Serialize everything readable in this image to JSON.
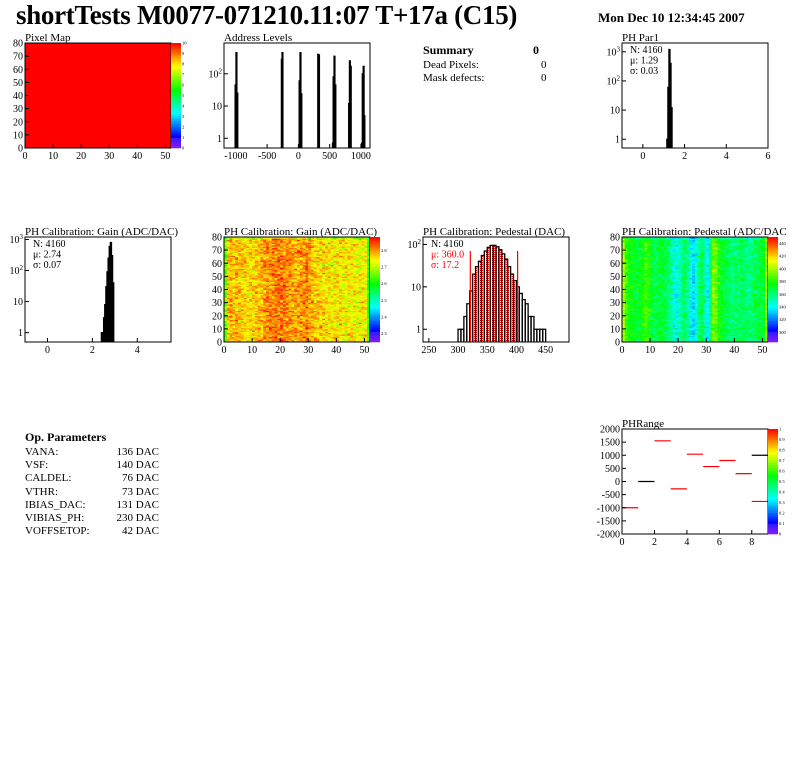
{
  "header": {
    "title": "shortTests M0077-071210.11:07 T+17a (C15)",
    "date": "Mon Dec 10 12:34:45 2007"
  },
  "summary": {
    "title": "Summary",
    "total": "0",
    "rows": [
      {
        "label": "Dead Pixels:",
        "value": "0"
      },
      {
        "label": "Mask defects:",
        "value": "0"
      }
    ]
  },
  "op_parameters": {
    "title": "Op. Parameters",
    "rows": [
      {
        "label": "VANA:",
        "value": "136 DAC"
      },
      {
        "label": "VSF:",
        "value": "140 DAC"
      },
      {
        "label": "CALDEL:",
        "value": "76 DAC"
      },
      {
        "label": "VTHR:",
        "value": "73 DAC"
      },
      {
        "label": "IBIAS_DAC:",
        "value": "131 DAC"
      },
      {
        "label": "VIBIAS_PH:",
        "value": "230 DAC"
      },
      {
        "label": "VOFFSETOP:",
        "value": "42 DAC"
      }
    ]
  },
  "colors": {
    "hist_line": "#000000",
    "fit": "#ff0000",
    "frame": "#000000"
  },
  "chart_data": [
    {
      "id": "pixmap",
      "type": "heatmap",
      "title": "Pixel Map",
      "xlim": [
        0,
        52
      ],
      "ylim": [
        0,
        80
      ],
      "zlim": [
        0,
        10
      ],
      "xticks": [
        0,
        10,
        20,
        30,
        40,
        50
      ],
      "yticks": [
        0,
        10,
        20,
        30,
        40,
        50,
        60,
        70,
        80
      ],
      "zticks": [
        0,
        1,
        2,
        3,
        4,
        5,
        6,
        7,
        8,
        9,
        10
      ],
      "nx": 52,
      "ny": 80,
      "uniform_value": 10
    },
    {
      "id": "addr",
      "type": "bar",
      "title": "Address Levels",
      "log_y": true,
      "xlim": [
        -1190,
        1145
      ],
      "ylim": [
        0.5,
        900
      ],
      "xticks": [
        -1000,
        -500,
        0,
        500,
        1000
      ],
      "yticks": [
        1,
        10,
        100
      ],
      "bin_width": 14,
      "bins": [
        [
          -1012,
          45
        ],
        [
          -998,
          450
        ],
        [
          -984,
          25
        ],
        [
          -1010,
          0.6
        ],
        [
          -272,
          280
        ],
        [
          -262,
          450
        ],
        [
          12,
          60
        ],
        [
          26,
          450
        ],
        [
          40,
          24
        ],
        [
          310,
          400
        ],
        [
          322,
          380
        ],
        [
          556,
          80
        ],
        [
          570,
          350
        ],
        [
          584,
          45
        ],
        [
          545,
          0.7
        ],
        [
          804,
          12
        ],
        [
          816,
          250
        ],
        [
          830,
          170
        ],
        [
          1022,
          100
        ],
        [
          1036,
          170
        ],
        [
          1048,
          5
        ],
        [
          1010,
          0.7
        ]
      ]
    },
    {
      "id": "par1",
      "type": "bar",
      "title": "PH Par1",
      "log_y": true,
      "xlim": [
        -1,
        6
      ],
      "ylim": [
        0.5,
        2000
      ],
      "xticks": [
        0,
        2,
        4,
        6
      ],
      "yticks": [
        1,
        10,
        100,
        1000
      ],
      "bin_width": 0.05,
      "bins": [
        [
          1.15,
          1
        ],
        [
          1.2,
          60
        ],
        [
          1.25,
          1200
        ],
        [
          1.3,
          400
        ],
        [
          1.35,
          12
        ],
        [
          1.4,
          0
        ]
      ],
      "stats": {
        "n": "N: 4160",
        "mean": "μ: 1.29",
        "sigma": "σ: 0.03"
      }
    },
    {
      "id": "gainh",
      "type": "bar",
      "title": "PH Calibration: Gain (ADC/DAC)",
      "log_y": true,
      "xlim": [
        -1,
        5.5
      ],
      "ylim": [
        0.5,
        1200
      ],
      "xticks": [
        0,
        2,
        4
      ],
      "yticks": [
        1,
        10,
        100,
        1000
      ],
      "bin_width": 0.05,
      "bins": [
        [
          2.4,
          1
        ],
        [
          2.45,
          1
        ],
        [
          2.5,
          3
        ],
        [
          2.55,
          8
        ],
        [
          2.6,
          30
        ],
        [
          2.65,
          90
        ],
        [
          2.7,
          250
        ],
        [
          2.75,
          600
        ],
        [
          2.8,
          800
        ],
        [
          2.85,
          300
        ],
        [
          2.9,
          40
        ],
        [
          2.95,
          0
        ]
      ],
      "stats": {
        "n": "N: 4160",
        "mean": "μ: 2.74",
        "sigma": "σ: 0.07"
      }
    },
    {
      "id": "gainm",
      "type": "heatmap",
      "title": "PH Calibration: Gain (ADC/DAC)",
      "xlim": [
        0,
        52
      ],
      "ylim": [
        0,
        80
      ],
      "zlim": [
        2.25,
        2.88
      ],
      "xticks": [
        0,
        10,
        20,
        30,
        40,
        50
      ],
      "yticks": [
        0,
        10,
        20,
        30,
        40,
        50,
        60,
        70,
        80
      ],
      "zticks": [
        2.3,
        2.4,
        2.5,
        2.6,
        2.7,
        2.8
      ],
      "nx": 52,
      "ny": 80,
      "column_means": [
        2.66,
        2.76,
        2.78,
        2.77,
        2.78,
        2.77,
        2.76,
        2.76,
        2.75,
        2.76,
        2.76,
        2.77,
        2.77,
        2.78,
        2.79,
        2.8,
        2.8,
        2.81,
        2.81,
        2.81,
        2.82,
        2.81,
        2.8,
        2.8,
        2.79,
        2.79,
        2.79,
        2.8,
        2.8,
        2.81,
        2.79,
        2.78,
        2.77,
        2.76,
        2.76,
        2.76,
        2.75,
        2.75,
        2.74,
        2.75,
        2.75,
        2.75,
        2.74,
        2.74,
        2.75,
        2.74,
        2.74,
        2.73,
        2.74,
        2.74,
        2.73,
        2.62
      ],
      "spread": 0.05
    },
    {
      "id": "pedh",
      "type": "bar",
      "title": "PH Calibration: Pedestal (DAC)",
      "log_y": true,
      "xlim": [
        240,
        490
      ],
      "ylim": [
        0.5,
        150
      ],
      "xticks": [
        250,
        300,
        350,
        400,
        450
      ],
      "yticks": [
        1,
        10,
        100
      ],
      "bin_width": 5,
      "bins": [
        [
          300,
          1
        ],
        [
          305,
          1
        ],
        [
          310,
          2
        ],
        [
          315,
          4
        ],
        [
          320,
          8
        ],
        [
          325,
          20
        ],
        [
          330,
          30
        ],
        [
          335,
          40
        ],
        [
          340,
          55
        ],
        [
          345,
          70
        ],
        [
          350,
          85
        ],
        [
          355,
          95
        ],
        [
          360,
          95
        ],
        [
          365,
          88
        ],
        [
          370,
          75
        ],
        [
          375,
          60
        ],
        [
          380,
          45
        ],
        [
          385,
          30
        ],
        [
          390,
          20
        ],
        [
          395,
          14
        ],
        [
          400,
          10
        ],
        [
          405,
          7
        ],
        [
          410,
          5
        ],
        [
          415,
          4
        ],
        [
          420,
          2
        ],
        [
          425,
          2
        ],
        [
          430,
          1
        ],
        [
          435,
          1
        ],
        [
          440,
          1
        ],
        [
          445,
          1
        ]
      ],
      "fit_range": [
        321,
        402
      ],
      "stats": {
        "n": "N: 4160",
        "mean": "μ: 360.0",
        "sigma": "σ: 17.2"
      }
    },
    {
      "id": "pedm",
      "type": "heatmap",
      "title": "PH Calibration: Pedestal (ADC/DAC",
      "xlim": [
        0,
        52
      ],
      "ylim": [
        0,
        80
      ],
      "zlim": [
        285,
        450
      ],
      "xticks": [
        0,
        10,
        20,
        30,
        40,
        50
      ],
      "yticks": [
        0,
        10,
        20,
        30,
        40,
        50,
        60,
        70,
        80
      ],
      "zticks": [
        300,
        320,
        340,
        360,
        380,
        400,
        420,
        440
      ],
      "nx": 52,
      "ny": 80,
      "column_means": [
        400,
        385,
        378,
        375,
        372,
        370,
        372,
        378,
        385,
        380,
        372,
        365,
        368,
        370,
        372,
        366,
        362,
        355,
        345,
        342,
        350,
        360,
        362,
        355,
        340,
        335,
        345,
        358,
        365,
        352,
        340,
        362,
        395,
        390,
        378,
        372,
        368,
        365,
        362,
        360,
        362,
        360,
        365,
        362,
        360,
        358,
        362,
        365,
        368,
        370,
        372,
        398
      ],
      "spread": 10
    },
    {
      "id": "phr",
      "type": "segments",
      "title": "PHRange",
      "xlim": [
        0,
        9
      ],
      "ylim": [
        -2000,
        2000
      ],
      "zlim": [
        0,
        1
      ],
      "xticks": [
        0,
        2,
        4,
        6,
        8
      ],
      "yticks": [
        -2000,
        -1500,
        -1000,
        -500,
        0,
        500,
        1000,
        1500,
        2000
      ],
      "zticks": [
        0,
        0.1,
        0.2,
        0.3,
        0.4,
        0.5,
        0.6,
        0.7,
        0.8,
        0.9,
        1
      ],
      "segments": [
        [
          0,
          1,
          -1000
        ],
        [
          1,
          2,
          0
        ],
        [
          2,
          3,
          1550
        ],
        [
          3,
          4,
          -280
        ],
        [
          4,
          5,
          1040
        ],
        [
          5,
          6,
          570
        ],
        [
          6,
          7,
          800
        ],
        [
          7,
          8,
          300
        ],
        [
          8,
          9,
          1000
        ],
        [
          8,
          9,
          -760
        ]
      ]
    }
  ]
}
